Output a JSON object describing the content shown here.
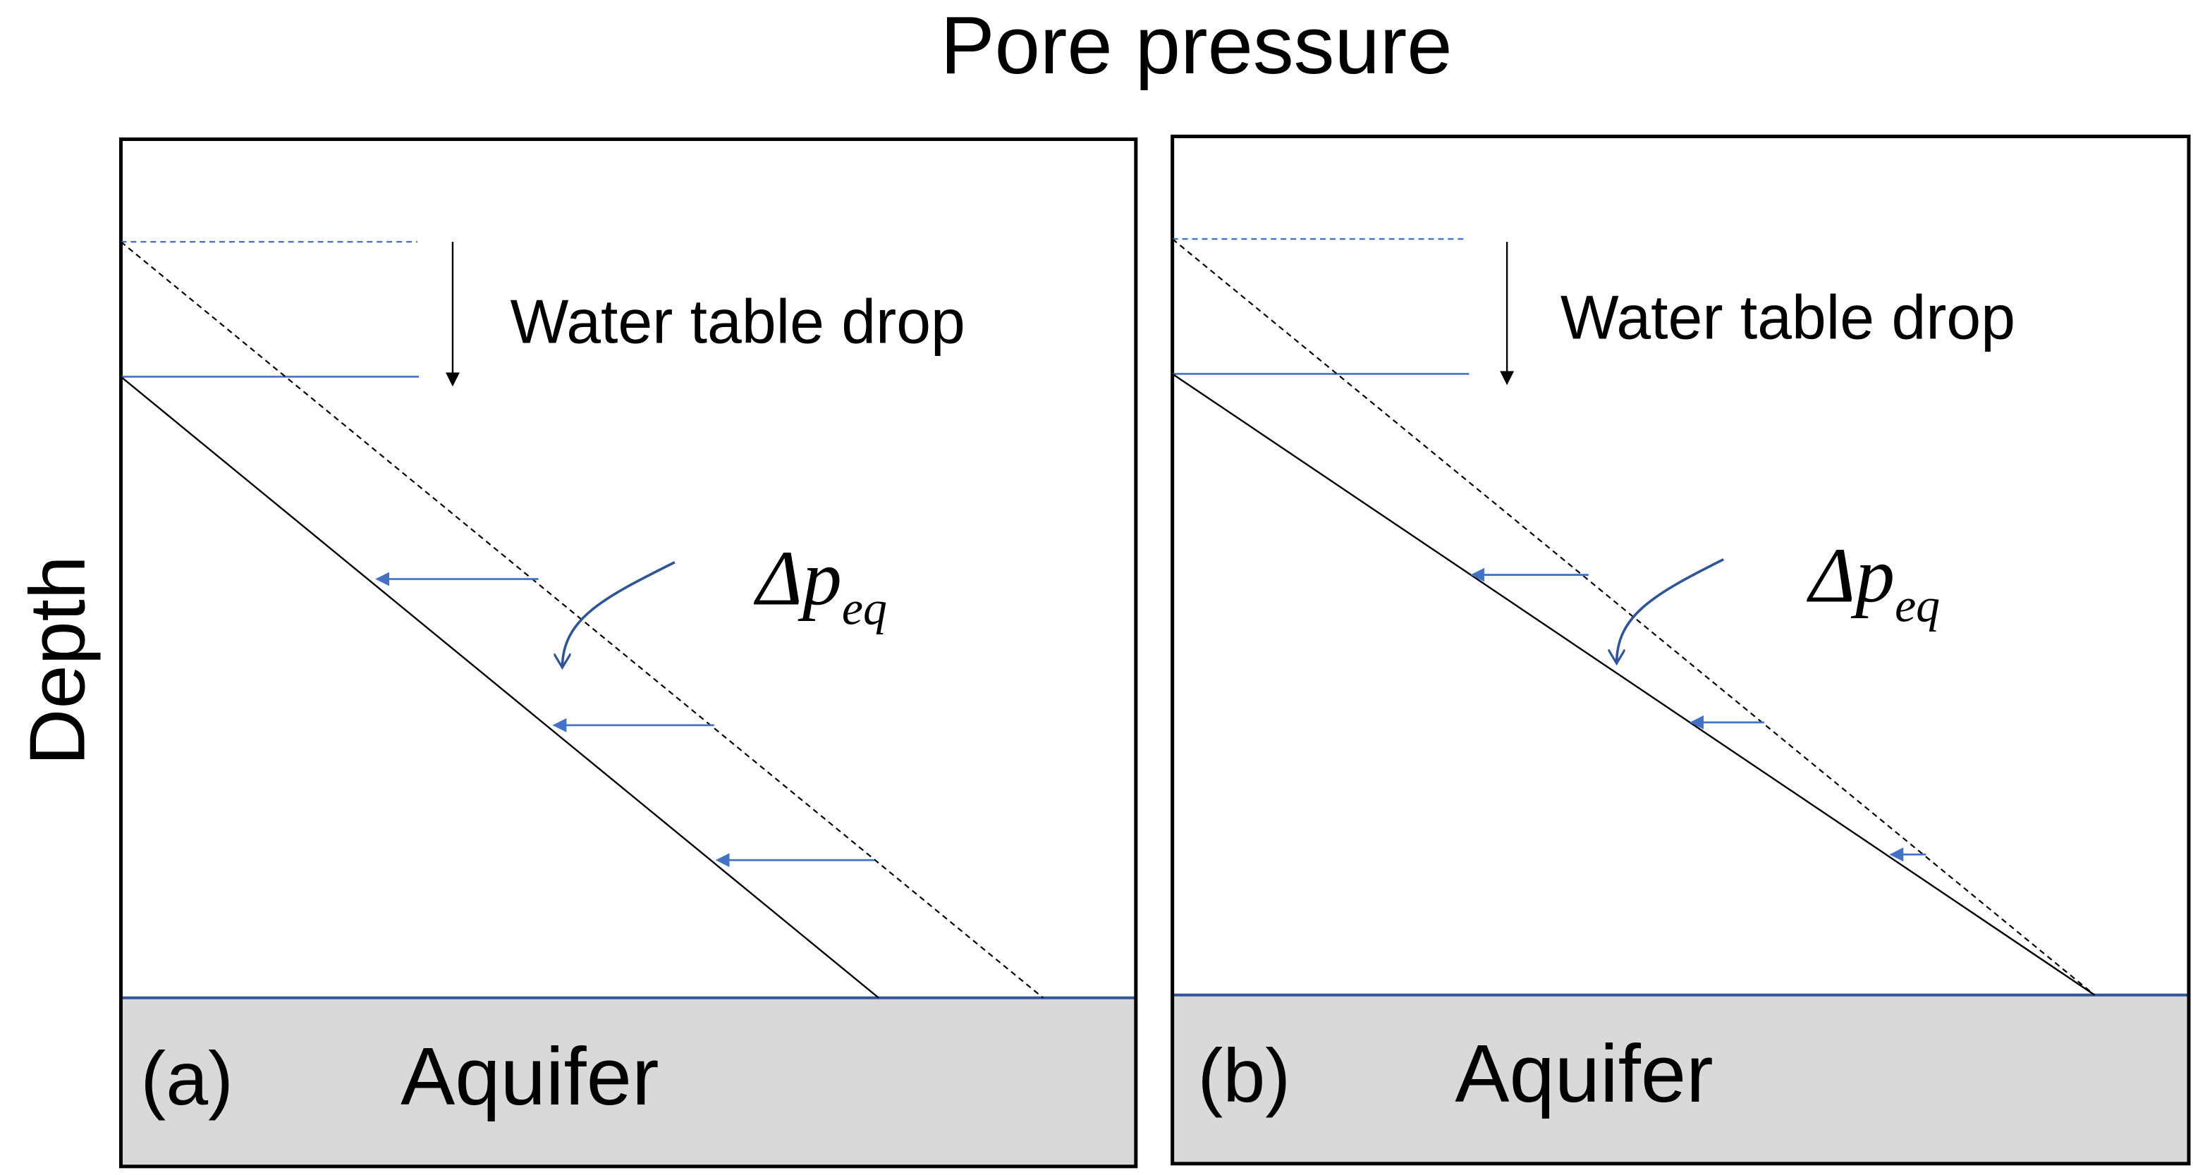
{
  "title": "Pore pressure",
  "y_axis_label": "Depth",
  "colors": {
    "water_line": "#4472c4",
    "arrow_blue": "#4472c4",
    "curve_arrow": "#2f5597",
    "aquifer_fill": "#d9d9d9",
    "aquifer_border": "#2f5597"
  },
  "panels": [
    {
      "tag": "(a)",
      "aquifer_label": "Aquifer",
      "annotation": "Water table drop",
      "delta_symbol": "Δp",
      "delta_subscript": "eq"
    },
    {
      "tag": "(b)",
      "aquifer_label": "Aquifer",
      "annotation": "Water table drop",
      "delta_symbol": "Δp",
      "delta_subscript": "eq"
    }
  ]
}
